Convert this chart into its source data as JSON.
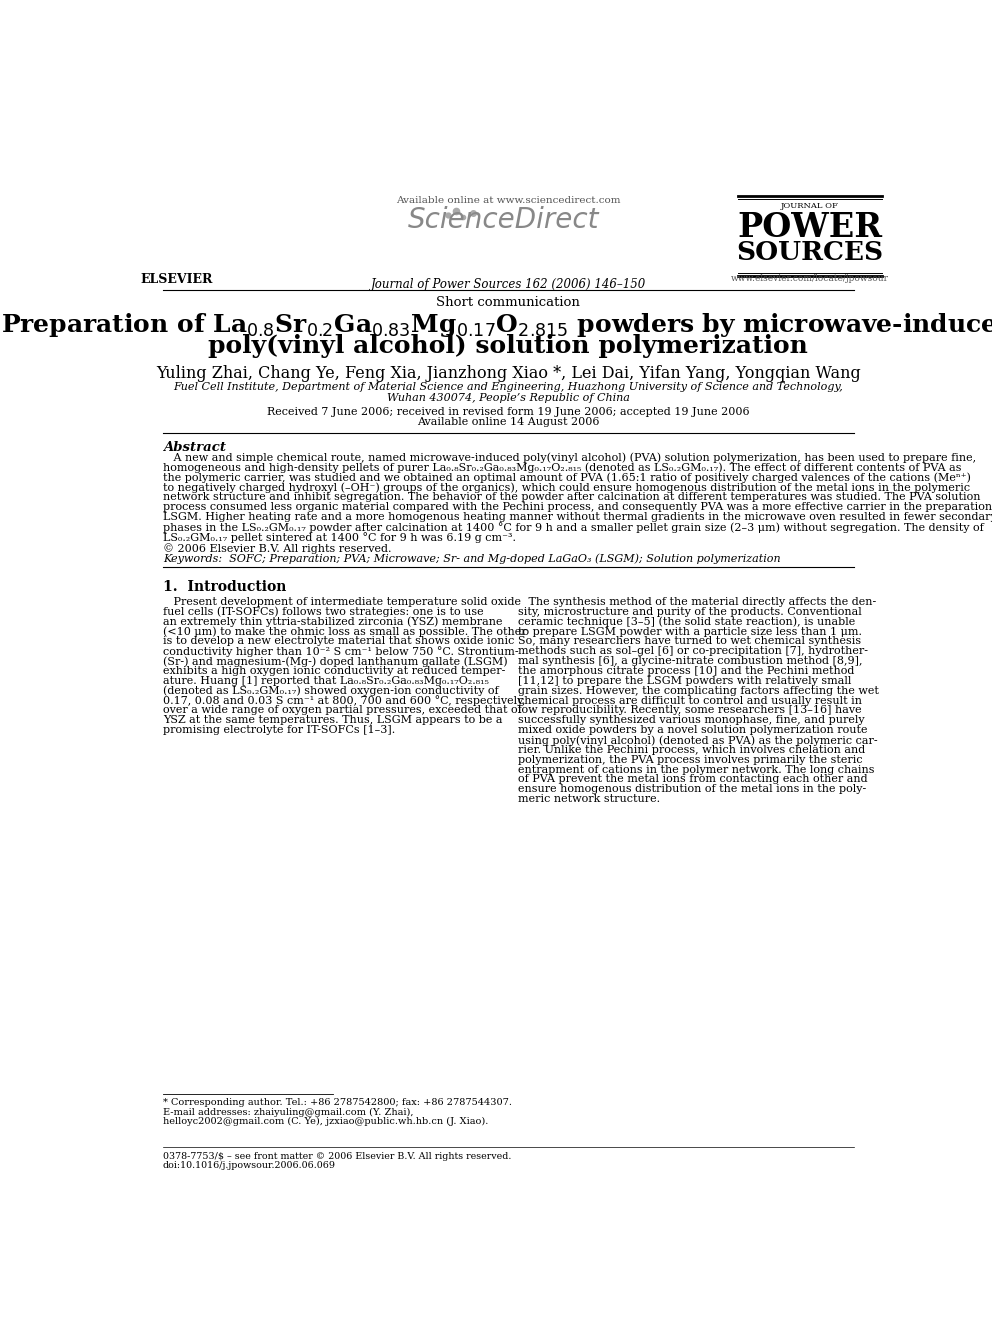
{
  "short_comm": "Short communication",
  "journal_line": "Journal of Power Sources 162 (2006) 146–150",
  "available_online": "Available online at www.sciencedirect.com",
  "journal_url": "www.elsevier.com/locate/jpowsour",
  "authors": "Yuling Zhai, Chang Ye, Feng Xia, Jianzhong Xiao *, Lei Dai, Yifan Yang, Yongqian Wang",
  "affiliation1": "Fuel Cell Institute, Department of Material Science and Engineering, Huazhong University of Science and Technology,",
  "affiliation2": "Wuhan 430074, People’s Republic of China",
  "dates": "Received 7 June 2006; received in revised form 19 June 2006; accepted 19 June 2006",
  "available": "Available online 14 August 2006",
  "abstract_title": "Abstract",
  "copyright": "© 2006 Elsevier B.V. All rights reserved.",
  "keywords": "Keywords:  SOFC; Preparation; PVA; Microwave; Sr- and Mg-doped LaGaO₃ (LSGM); Solution polymerization",
  "section1_title": "1.  Introduction",
  "footnote1": "* Corresponding author. Tel.: +86 2787542800; fax: +86 2787544307.",
  "footnote2": "E-mail addresses: zhaiyuling@gmail.com (Y. Zhai),",
  "footnote3": "helloyc2002@gmail.com (C. Ye), jzxiao@public.wh.hb.cn (J. Xiao).",
  "bottom_line1": "0378-7753/$ – see front matter © 2006 Elsevier B.V. All rights reserved.",
  "bottom_line2": "doi:10.1016/j.jpowsour.2006.06.069",
  "bg_color": "#ffffff",
  "text_color": "#000000",
  "intro_left_lines": [
    "   Present development of intermediate temperature solid oxide",
    "fuel cells (IT-SOFCs) follows two strategies: one is to use",
    "an extremely thin yttria-stabilized zirconia (YSZ) membrane",
    "(<10 μm) to make the ohmic loss as small as possible. The other",
    "is to develop a new electrolyte material that shows oxide ionic",
    "conductivity higher than 10⁻² S cm⁻¹ below 750 °C. Strontium-",
    "(Sr-) and magnesium-(Mg-) doped lanthanum gallate (LSGM)",
    "exhibits a high oxygen ionic conductivity at reduced temper-",
    "ature. Huang [1] reported that La₀.₈Sr₀.₂Ga₀.₈₃Mg₀.₁₇O₂.₈₁₅",
    "(denoted as LS₀.₂GM₀.₁₇) showed oxygen-ion conductivity of",
    "0.17, 0.08 and 0.03 S cm⁻¹ at 800, 700 and 600 °C, respectively,",
    "over a wide range of oxygen partial pressures, exceeded that of",
    "YSZ at the same temperatures. Thus, LSGM appears to be a",
    "promising electrolyte for IT-SOFCs [1–3]."
  ],
  "intro_right_lines": [
    "   The synthesis method of the material directly affects the den-",
    "sity, microstructure and purity of the products. Conventional",
    "ceramic technique [3–5] (the solid state reaction), is unable",
    "to prepare LSGM powder with a particle size less than 1 μm.",
    "So, many researchers have turned to wet chemical synthesis",
    "methods such as sol–gel [6] or co-precipitation [7], hydrother-",
    "mal synthesis [6], a glycine-nitrate combustion method [8,9],",
    "the amorphous citrate process [10] and the Pechini method",
    "[11,12] to prepare the LSGM powders with relatively small",
    "grain sizes. However, the complicating factors affecting the wet",
    "chemical process are difficult to control and usually result in",
    "low reproducibility. Recently, some researchers [13–16] have",
    "successfully synthesized various monophase, fine, and purely",
    "mixed oxide powders by a novel solution polymerization route",
    "using poly(vinyl alcohol) (denoted as PVA) as the polymeric car-",
    "rier. Unlike the Pechini process, which involves chelation and",
    "polymerization, the PVA process involves primarily the steric",
    "entrapment of cations in the polymer network. The long chains",
    "of PVA prevent the metal ions from contacting each other and",
    "ensure homogenous distribution of the metal ions in the poly-",
    "meric network structure."
  ],
  "abstract_lines": [
    "   A new and simple chemical route, named microwave-induced poly(vinyl alcohol) (PVA) solution polymerization, has been used to prepare fine,",
    "homogeneous and high-density pellets of purer La₀.₈Sr₀.₂Ga₀.₈₃Mg₀.₁₇O₂.₈₁₅ (denoted as LS₀.₂GM₀.₁₇). The effect of different contents of PVA as",
    "the polymeric carrier, was studied and we obtained an optimal amount of PVA (1.65:1 ratio of positively charged valences of the cations (Meⁿ⁺)",
    "to negatively charged hydroxyl (–OH⁻) groups of the organics), which could ensure homogenous distribution of the metal ions in the polymeric",
    "network structure and inhibit segregation. The behavior of the powder after calcination at different temperatures was studied. The PVA solution",
    "process consumed less organic material compared with the Pechini process, and consequently PVA was a more effective carrier in the preparation of",
    "LSGM. Higher heating rate and a more homogenous heating manner without thermal gradients in the microwave oven resulted in fewer secondary",
    "phases in the LS₀.₂GM₀.₁₇ powder after calcination at 1400 °C for 9 h and a smaller pellet grain size (2–3 μm) without segregation. The density of",
    "LS₀.₂GM₀.₁₇ pellet sintered at 1400 °C for 9 h was 6.19 g cm⁻³."
  ]
}
